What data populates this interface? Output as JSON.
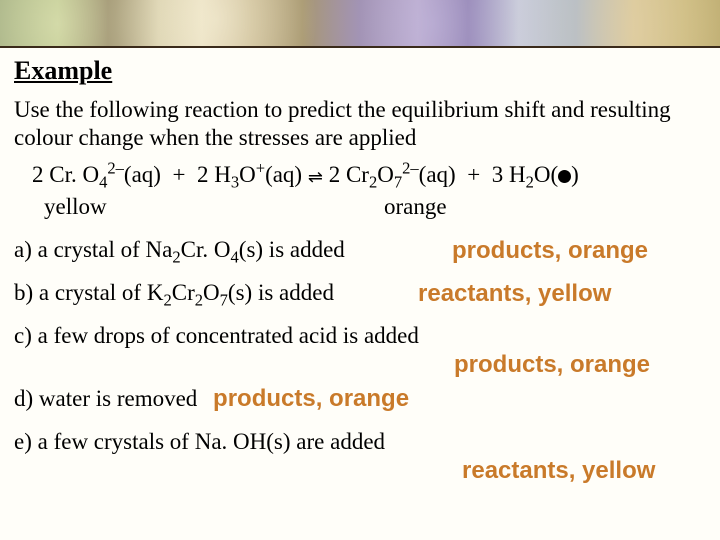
{
  "heading": "Example",
  "intro": "Use the following reaction to predict the equilibrium shift and resulting colour change when the stresses are applied",
  "equation": {
    "lhs_coef1": "2",
    "species1_a": "Cr. O",
    "species1_sub": "4",
    "species1_sup": "2–",
    "species1_state": "(aq)",
    "plus": "+",
    "lhs_coef2": "2",
    "species2_a": "H",
    "species2_sub": "3",
    "species2_b": "O",
    "species2_sup": "+",
    "species2_state": "(aq)",
    "arrow": "⇌",
    "rhs_coef1": "2",
    "species3_a": "Cr",
    "species3_sub1": "2",
    "species3_b": "O",
    "species3_sub2": "7",
    "species3_sup": "2–",
    "species3_state": "(aq)",
    "rhs_coef2": "3",
    "species4_a": "H",
    "species4_sub": "2",
    "species4_b": "O(",
    "species4_close": ")"
  },
  "colors": {
    "left": "yellow",
    "right": "orange"
  },
  "items": {
    "a": {
      "text_pre": "a) a crystal of Na",
      "sub1": "2",
      "text_mid": "Cr. O",
      "sub2": "4",
      "text_post": "(s) is added",
      "answer": "products, orange"
    },
    "b": {
      "text_pre": "b) a crystal of K",
      "sub1": "2",
      "text_mid": "Cr",
      "sub2": "2",
      "text_mid2": "O",
      "sub3": "7",
      "text_post": "(s) is added",
      "answer": "reactants, yellow"
    },
    "c": {
      "text": "c) a few drops of concentrated acid is added",
      "answer": "products, orange"
    },
    "d": {
      "text": "d) water is removed",
      "answer": "products, orange"
    },
    "e": {
      "text": "e)  a few crystals of Na. OH(s) are added",
      "answer": "reactants, yellow"
    }
  },
  "palette": {
    "answer_color": "#c97a2a",
    "background": "#fffef9",
    "text": "#000000"
  }
}
